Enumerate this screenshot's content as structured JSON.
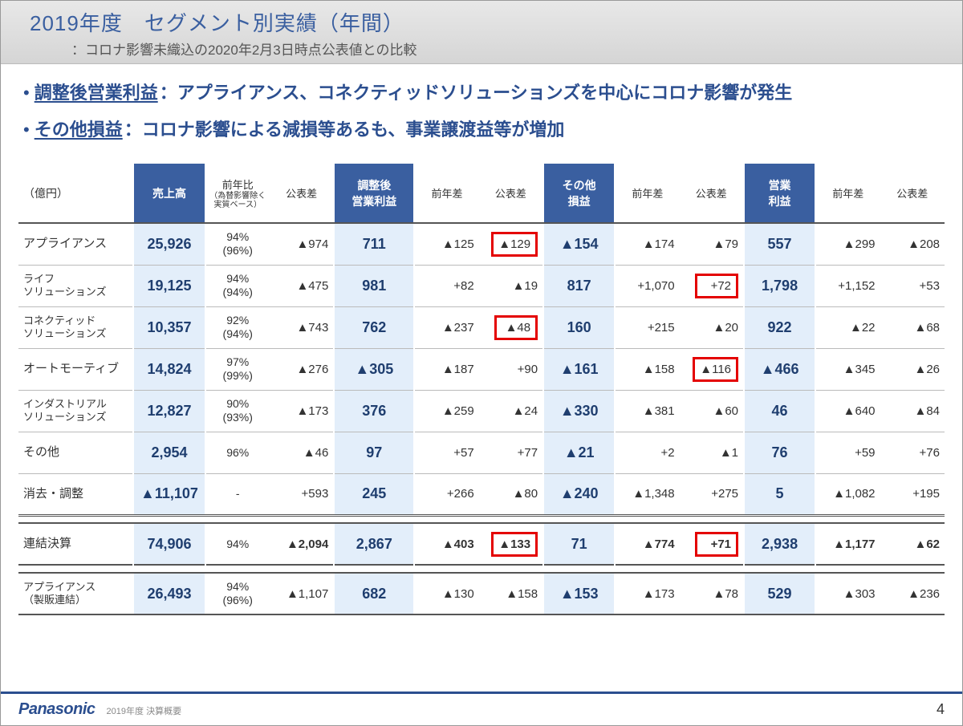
{
  "title": {
    "main": "2019年度　セグメント別実績（年間）",
    "sub": "：コロナ影響未織込の2020年2月3日時点公表値との比較"
  },
  "bullets": [
    {
      "ul": "調整後営業利益",
      "rest": "：アプライアンス、コネクティッドソリューションズを中心にコロナ影響が発生"
    },
    {
      "ul": "その他損益",
      "rest": "：コロナ影響による減損等あるも、事業譲渡益等が増加"
    }
  ],
  "table": {
    "unit": "（億円）",
    "headers": {
      "sales": "売上高",
      "yoy": "前年比",
      "yoy_small": "（為替影響除く\n実質ベース）",
      "diff_pub": "公表差",
      "adj_op": "調整後\n営業利益",
      "yoy_diff": "前年差",
      "other": "その他\n損益",
      "op": "営業\n利益"
    },
    "rows": [
      {
        "name": "アプライアンス",
        "sales": "25,926",
        "yoy": "94%\n(96%)",
        "d1": "▲974",
        "adj": "711",
        "d2": "▲125",
        "d3": "▲129",
        "d3_red": true,
        "other": "▲154",
        "d4": "▲174",
        "d5": "▲79",
        "op": "557",
        "d6": "▲299",
        "d7": "▲208"
      },
      {
        "name": "ライフ\nソリューションズ",
        "sales": "19,125",
        "yoy": "94%\n(94%)",
        "d1": "▲475",
        "adj": "981",
        "d2": "+82",
        "d3": "▲19",
        "other": "817",
        "d4": "+1,070",
        "d5": "+72",
        "d5_red": true,
        "op": "1,798",
        "d6": "+1,152",
        "d7": "+53"
      },
      {
        "name": "コネクティッド\nソリューションズ",
        "sales": "10,357",
        "yoy": "92%\n(94%)",
        "d1": "▲743",
        "adj": "762",
        "d2": "▲237",
        "d3": "▲48",
        "d3_red": true,
        "other": "160",
        "d4": "+215",
        "d5": "▲20",
        "op": "922",
        "d6": "▲22",
        "d7": "▲68"
      },
      {
        "name": "オートモーティブ",
        "sales": "14,824",
        "yoy": "97%\n(99%)",
        "d1": "▲276",
        "adj": "▲305",
        "d2": "▲187",
        "d3": "+90",
        "other": "▲161",
        "d4": "▲158",
        "d5": "▲116",
        "d5_red": true,
        "op": "▲466",
        "d6": "▲345",
        "d7": "▲26"
      },
      {
        "name": "インダストリアル\nソリューションズ",
        "sales": "12,827",
        "yoy": "90%\n(93%)",
        "d1": "▲173",
        "adj": "376",
        "d2": "▲259",
        "d3": "▲24",
        "other": "▲330",
        "d4": "▲381",
        "d5": "▲60",
        "op": "46",
        "d6": "▲640",
        "d7": "▲84"
      },
      {
        "name": "その他",
        "sales": "2,954",
        "yoy": "96%",
        "d1": "▲46",
        "adj": "97",
        "d2": "+57",
        "d3": "+77",
        "other": "▲21",
        "d4": "+2",
        "d5": "▲1",
        "op": "76",
        "d6": "+59",
        "d7": "+76"
      },
      {
        "name": "消去・調整",
        "sales": "▲11,107",
        "yoy": "-",
        "d1": "+593",
        "adj": "245",
        "d2": "+266",
        "d3": "▲80",
        "other": "▲240",
        "d4": "▲1,348",
        "d5": "+275",
        "op": "5",
        "d6": "▲1,082",
        "d7": "+195"
      }
    ],
    "total": {
      "name": "連結決算",
      "sales": "74,906",
      "yoy": "94%",
      "d1": "▲2,094",
      "adj": "2,867",
      "d2": "▲403",
      "d3": "▲133",
      "d3_red": true,
      "other": "71",
      "d4": "▲774",
      "d5": "+71",
      "d5_red": true,
      "op": "2,938",
      "d6": "▲1,177",
      "d7": "▲62"
    },
    "extra": {
      "name": "アプライアンス\n（製販連結）",
      "sales": "26,493",
      "yoy": "94%\n(96%)",
      "d1": "▲1,107",
      "adj": "682",
      "d2": "▲130",
      "d3": "▲158",
      "other": "▲153",
      "d4": "▲173",
      "d5": "▲78",
      "op": "529",
      "d6": "▲303",
      "d7": "▲236"
    }
  },
  "footer": {
    "logo": "Panasonic",
    "note": "2019年度 決算概要",
    "page": "4"
  }
}
